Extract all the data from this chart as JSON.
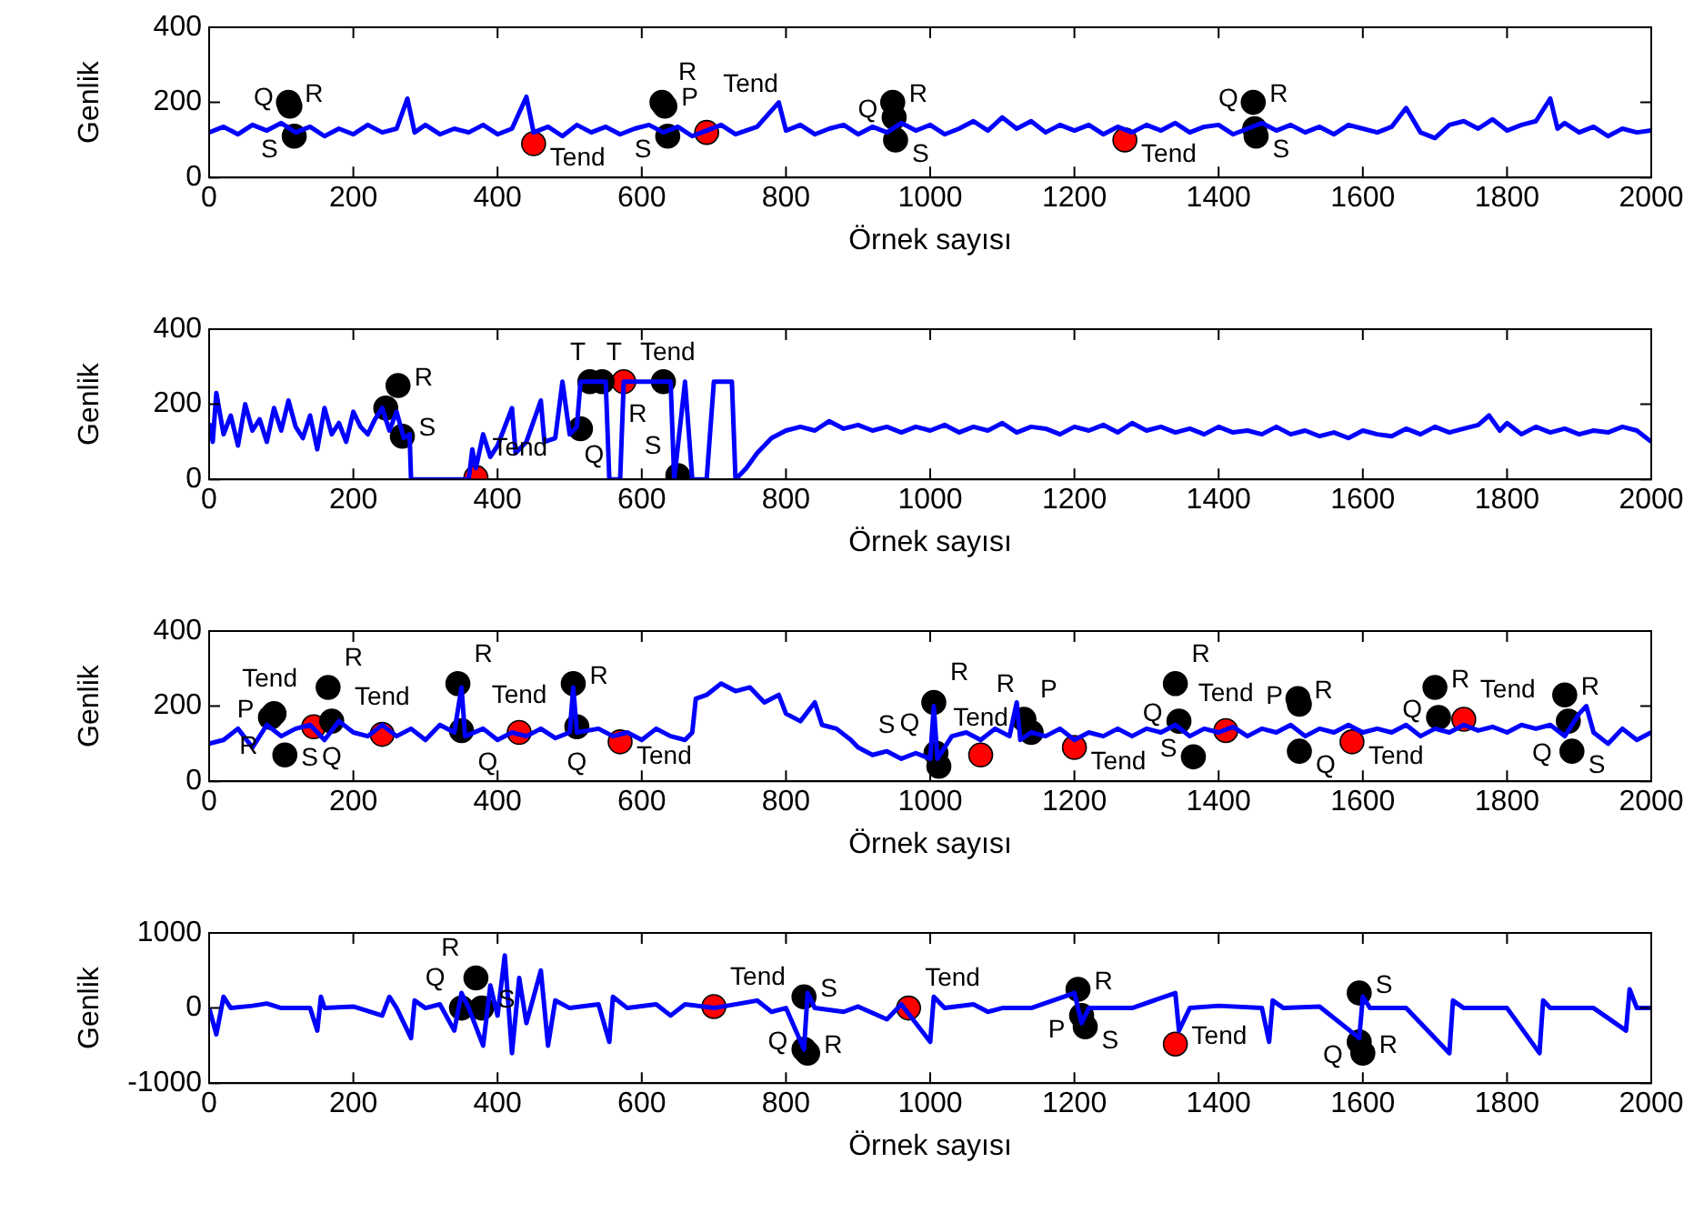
{
  "chart_data": [
    {
      "type": "line",
      "xlabel": "Örnek sayısı",
      "ylabel": "Genlik",
      "xlim": [
        0,
        2000
      ],
      "xticks": [
        0,
        200,
        400,
        600,
        800,
        1000,
        1200,
        1400,
        1600,
        1800,
        2000
      ],
      "ylim": [
        0,
        400
      ],
      "yticks": [
        0,
        200,
        400
      ],
      "grid": false,
      "legend": false,
      "series": [
        {
          "type": "line",
          "color": "#0000ff",
          "x": [
            0,
            20,
            40,
            60,
            80,
            100,
            120,
            140,
            160,
            180,
            200,
            220,
            240,
            260,
            275,
            285,
            300,
            320,
            340,
            360,
            380,
            400,
            420,
            440,
            450,
            470,
            490,
            510,
            530,
            550,
            570,
            590,
            610,
            630,
            650,
            670,
            690,
            710,
            730,
            760,
            790,
            800,
            820,
            840,
            860,
            880,
            900,
            920,
            940,
            960,
            980,
            1000,
            1020,
            1040,
            1060,
            1080,
            1100,
            1120,
            1140,
            1160,
            1180,
            1200,
            1220,
            1240,
            1260,
            1280,
            1300,
            1320,
            1340,
            1360,
            1380,
            1400,
            1420,
            1440,
            1460,
            1480,
            1500,
            1520,
            1540,
            1560,
            1580,
            1600,
            1620,
            1640,
            1660,
            1680,
            1700,
            1720,
            1740,
            1760,
            1780,
            1800,
            1820,
            1840,
            1860,
            1870,
            1880,
            1900,
            1920,
            1940,
            1960,
            1980,
            2000
          ],
          "values": [
            120,
            135,
            115,
            140,
            125,
            145,
            120,
            135,
            110,
            130,
            115,
            140,
            120,
            130,
            210,
            120,
            140,
            115,
            130,
            120,
            140,
            115,
            130,
            215,
            120,
            135,
            110,
            140,
            120,
            135,
            115,
            130,
            140,
            120,
            135,
            110,
            125,
            140,
            115,
            135,
            200,
            125,
            140,
            115,
            130,
            140,
            115,
            135,
            120,
            145,
            125,
            140,
            115,
            130,
            150,
            125,
            160,
            130,
            150,
            120,
            140,
            125,
            140,
            115,
            135,
            120,
            140,
            125,
            145,
            120,
            135,
            140,
            115,
            130,
            145,
            125,
            140,
            120,
            135,
            115,
            140,
            130,
            120,
            135,
            185,
            120,
            105,
            140,
            150,
            130,
            155,
            125,
            140,
            150,
            210,
            130,
            145,
            120,
            135,
            110,
            130,
            120,
            125
          ]
        },
        {
          "type": "scatter",
          "marker": "circle",
          "color": "#000000",
          "x": [
            110,
            112,
            118,
            628,
            632,
            636,
            948,
            950,
            952,
            1448,
            1450,
            1452
          ],
          "values": [
            200,
            190,
            110,
            200,
            190,
            110,
            200,
            160,
            100,
            200,
            130,
            110
          ],
          "value_labels": [
            "R",
            "Q",
            "S",
            "R",
            "P",
            "S",
            "R",
            "Q",
            "S",
            "R",
            "Q",
            "S"
          ]
        },
        {
          "type": "scatter",
          "marker": "circle",
          "color": "#ff0000",
          "x": [
            450,
            690,
            1270
          ],
          "values": [
            90,
            120,
            100
          ],
          "value_labels": [
            "Tend",
            "Tend",
            "Tend"
          ]
        }
      ]
    },
    {
      "type": "line",
      "xlabel": "Örnek sayısı",
      "ylabel": "Genlik",
      "xlim": [
        0,
        2000
      ],
      "xticks": [
        0,
        200,
        400,
        600,
        800,
        1000,
        1200,
        1400,
        1600,
        1800,
        2000
      ],
      "ylim": [
        0,
        400
      ],
      "yticks": [
        0,
        200,
        400
      ],
      "grid": false,
      "legend": false,
      "series": [
        {
          "type": "line",
          "color": "#0000ff",
          "x": [
            0,
            5,
            10,
            20,
            30,
            40,
            50,
            60,
            70,
            80,
            90,
            100,
            110,
            120,
            130,
            140,
            150,
            160,
            170,
            180,
            190,
            200,
            210,
            220,
            230,
            240,
            250,
            260,
            270,
            278,
            280,
            360,
            365,
            370,
            380,
            390,
            400,
            420,
            425,
            440,
            460,
            465,
            480,
            490,
            500,
            510,
            515,
            550,
            555,
            570,
            575,
            640,
            645,
            660,
            670,
            690,
            700,
            725,
            730,
            745,
            760,
            780,
            800,
            820,
            840,
            860,
            880,
            900,
            920,
            940,
            960,
            980,
            1000,
            1020,
            1040,
            1060,
            1080,
            1100,
            1120,
            1140,
            1160,
            1180,
            1200,
            1220,
            1240,
            1260,
            1280,
            1300,
            1320,
            1340,
            1360,
            1380,
            1400,
            1420,
            1440,
            1460,
            1480,
            1500,
            1520,
            1540,
            1560,
            1580,
            1600,
            1620,
            1640,
            1660,
            1680,
            1700,
            1720,
            1740,
            1760,
            1775,
            1790,
            1800,
            1820,
            1840,
            1860,
            1880,
            1900,
            1920,
            1940,
            1960,
            1980,
            2000
          ],
          "values": [
            150,
            100,
            230,
            120,
            170,
            90,
            200,
            130,
            160,
            100,
            190,
            130,
            210,
            140,
            110,
            170,
            80,
            190,
            120,
            150,
            100,
            180,
            140,
            120,
            160,
            190,
            130,
            180,
            110,
            120,
            0,
            0,
            80,
            30,
            120,
            60,
            90,
            190,
            70,
            100,
            210,
            100,
            110,
            260,
            120,
            140,
            260,
            260,
            0,
            0,
            260,
            260,
            0,
            260,
            0,
            0,
            260,
            260,
            0,
            30,
            70,
            110,
            130,
            140,
            130,
            155,
            135,
            145,
            130,
            140,
            125,
            140,
            130,
            145,
            125,
            140,
            130,
            150,
            125,
            140,
            135,
            120,
            140,
            130,
            145,
            125,
            150,
            130,
            140,
            125,
            135,
            120,
            140,
            125,
            130,
            120,
            140,
            120,
            130,
            115,
            125,
            110,
            130,
            120,
            115,
            135,
            120,
            140,
            125,
            135,
            145,
            170,
            130,
            150,
            120,
            140,
            125,
            135,
            120,
            130,
            125,
            140,
            130,
            100
          ]
        },
        {
          "type": "scatter",
          "marker": "circle",
          "color": "#000000",
          "x": [
            245,
            262,
            268,
            515,
            528,
            545,
            630,
            650
          ],
          "values": [
            190,
            250,
            115,
            135,
            260,
            260,
            260,
            10
          ],
          "value_labels": [
            null,
            "R",
            "S",
            "Q",
            "T",
            "T",
            "R",
            "S"
          ]
        },
        {
          "type": "scatter",
          "marker": "circle",
          "color": "#ff0000",
          "x": [
            370,
            575
          ],
          "values": [
            5,
            260
          ],
          "value_labels": [
            "Tend",
            "Tend"
          ]
        }
      ]
    },
    {
      "type": "line",
      "xlabel": "Örnek sayısı",
      "ylabel": "Genlik",
      "xlim": [
        0,
        2000
      ],
      "xticks": [
        0,
        200,
        400,
        600,
        800,
        1000,
        1200,
        1400,
        1600,
        1800,
        2000
      ],
      "ylim": [
        0,
        400
      ],
      "yticks": [
        0,
        200,
        400
      ],
      "grid": false,
      "legend": false,
      "series": [
        {
          "type": "line",
          "color": "#0000ff",
          "x": [
            0,
            20,
            40,
            60,
            80,
            100,
            120,
            140,
            160,
            180,
            200,
            220,
            240,
            260,
            280,
            300,
            320,
            340,
            350,
            355,
            380,
            400,
            420,
            440,
            460,
            480,
            500,
            505,
            510,
            540,
            560,
            580,
            600,
            620,
            640,
            660,
            670,
            675,
            690,
            710,
            730,
            750,
            770,
            790,
            800,
            820,
            840,
            850,
            870,
            890,
            900,
            920,
            940,
            960,
            980,
            1000,
            1005,
            1010,
            1030,
            1050,
            1070,
            1090,
            1110,
            1120,
            1125,
            1140,
            1160,
            1180,
            1200,
            1220,
            1240,
            1260,
            1280,
            1300,
            1320,
            1340,
            1360,
            1380,
            1400,
            1420,
            1440,
            1460,
            1480,
            1500,
            1520,
            1540,
            1560,
            1580,
            1600,
            1620,
            1640,
            1660,
            1680,
            1700,
            1720,
            1740,
            1760,
            1780,
            1800,
            1820,
            1840,
            1860,
            1880,
            1900,
            1910,
            1920,
            1940,
            1960,
            1980,
            2000
          ],
          "values": [
            100,
            110,
            140,
            90,
            150,
            120,
            140,
            150,
            110,
            160,
            130,
            120,
            150,
            120,
            140,
            110,
            150,
            130,
            250,
            120,
            140,
            110,
            130,
            120,
            140,
            115,
            130,
            250,
            130,
            140,
            120,
            130,
            110,
            140,
            120,
            110,
            130,
            220,
            230,
            260,
            240,
            250,
            210,
            230,
            180,
            160,
            210,
            150,
            140,
            110,
            90,
            70,
            80,
            60,
            75,
            60,
            200,
            60,
            120,
            130,
            110,
            140,
            120,
            210,
            110,
            130,
            120,
            140,
            110,
            130,
            120,
            140,
            120,
            140,
            130,
            150,
            120,
            140,
            130,
            145,
            120,
            140,
            130,
            150,
            120,
            140,
            130,
            150,
            130,
            140,
            130,
            150,
            120,
            140,
            130,
            150,
            135,
            145,
            130,
            150,
            140,
            150,
            120,
            180,
            200,
            130,
            100,
            140,
            110,
            130
          ]
        },
        {
          "type": "scatter",
          "marker": "circle",
          "color": "#000000",
          "x": [
            85,
            90,
            105,
            165,
            170,
            345,
            350,
            505,
            510,
            1005,
            1008,
            1012,
            1130,
            1140,
            1340,
            1345,
            1365,
            1510,
            1512,
            1512,
            1700,
            1705,
            1880,
            1885,
            1890
          ],
          "values": [
            170,
            180,
            70,
            250,
            160,
            260,
            135,
            260,
            145,
            210,
            75,
            40,
            165,
            130,
            260,
            160,
            65,
            220,
            205,
            80,
            250,
            170,
            230,
            160,
            80
          ],
          "value_labels": [
            "P",
            "R",
            "S",
            "R",
            "Q",
            "R",
            "Q",
            "R",
            "Q",
            "R",
            "Q",
            "S",
            "P",
            "R",
            "R",
            "Q",
            "S",
            "R",
            "P",
            "Q",
            "R",
            "Q",
            "R",
            "Q",
            "S"
          ]
        },
        {
          "type": "scatter",
          "marker": "circle",
          "color": "#ff0000",
          "x": [
            145,
            240,
            430,
            570,
            1070,
            1200,
            1410,
            1585,
            1740
          ],
          "values": [
            145,
            125,
            130,
            105,
            70,
            90,
            135,
            105,
            165
          ],
          "value_labels": [
            "Tend",
            "Tend",
            "Tend",
            "Tend",
            "Tend",
            "Tend",
            "Tend",
            "Tend",
            "Tend"
          ]
        }
      ]
    },
    {
      "type": "line",
      "xlabel": "Örnek sayısı",
      "ylabel": "Genlik",
      "xlim": [
        0,
        2000
      ],
      "xticks": [
        0,
        200,
        400,
        600,
        800,
        1000,
        1200,
        1400,
        1600,
        1800,
        2000
      ],
      "ylim": [
        -1000,
        1000
      ],
      "yticks": [
        -1000,
        0,
        1000
      ],
      "grid": false,
      "legend": false,
      "series": [
        {
          "type": "line",
          "color": "#0000ff",
          "x": [
            0,
            10,
            20,
            30,
            60,
            80,
            100,
            140,
            150,
            155,
            160,
            200,
            240,
            250,
            260,
            280,
            285,
            300,
            320,
            340,
            350,
            360,
            380,
            390,
            400,
            410,
            420,
            430,
            440,
            460,
            470,
            480,
            500,
            540,
            555,
            560,
            580,
            620,
            640,
            660,
            700,
            760,
            780,
            800,
            825,
            830,
            840,
            880,
            900,
            940,
            960,
            1000,
            1005,
            1020,
            1060,
            1080,
            1100,
            1140,
            1200,
            1210,
            1220,
            1280,
            1340,
            1345,
            1360,
            1400,
            1460,
            1470,
            1475,
            1490,
            1540,
            1595,
            1600,
            1610,
            1660,
            1720,
            1725,
            1740,
            1800,
            1845,
            1850,
            1860,
            1920,
            1965,
            1970,
            1980,
            2000
          ],
          "values": [
            0,
            -350,
            150,
            0,
            30,
            60,
            0,
            0,
            -300,
            150,
            0,
            20,
            -100,
            150,
            0,
            -400,
            100,
            0,
            50,
            -300,
            200,
            0,
            -500,
            300,
            -100,
            700,
            -600,
            400,
            -200,
            500,
            -500,
            100,
            0,
            50,
            -450,
            150,
            0,
            50,
            -100,
            50,
            0,
            100,
            -50,
            0,
            -550,
            200,
            0,
            -50,
            20,
            -150,
            50,
            -450,
            150,
            0,
            50,
            -50,
            0,
            0,
            200,
            -200,
            0,
            0,
            200,
            -300,
            0,
            30,
            0,
            -450,
            100,
            0,
            20,
            -400,
            150,
            0,
            0,
            -600,
            100,
            0,
            0,
            -600,
            100,
            0,
            0,
            -300,
            250,
            0,
            0
          ]
        },
        {
          "type": "scatter",
          "marker": "circle",
          "color": "#000000",
          "x": [
            350,
            370,
            378,
            825,
            825,
            830,
            1205,
            1210,
            1215,
            1595,
            1595,
            1600
          ],
          "values": [
            0,
            400,
            0,
            150,
            -550,
            -600,
            250,
            -100,
            -250,
            200,
            -450,
            -600
          ],
          "value_labels": [
            "Q",
            "R",
            "S",
            "S",
            "Q",
            "R",
            "R",
            "P",
            "S",
            "S",
            "Q",
            "R"
          ]
        },
        {
          "type": "scatter",
          "marker": "circle",
          "color": "#ff0000",
          "x": [
            700,
            970,
            1340
          ],
          "values": [
            20,
            0,
            -480
          ],
          "value_labels": [
            "Tend",
            "Tend",
            "Tend"
          ]
        }
      ]
    }
  ]
}
